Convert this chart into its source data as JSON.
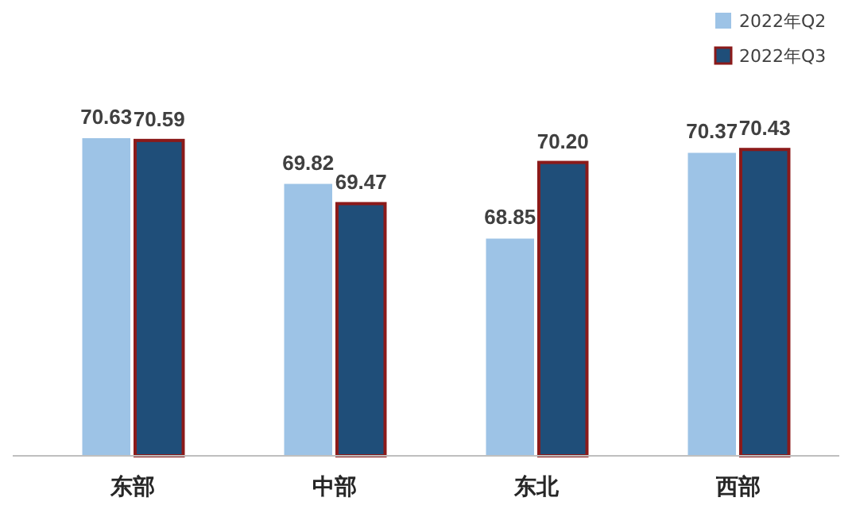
{
  "chart_data": {
    "type": "bar",
    "categories": [
      "东部",
      "中部",
      "东北",
      "西部"
    ],
    "series": [
      {
        "name": "2022年Q2",
        "color": "#9dc3e6",
        "values": [
          70.63,
          69.82,
          68.85,
          70.37
        ],
        "value_labels": [
          "70.63",
          "69.82",
          "68.85",
          "70.37"
        ]
      },
      {
        "name": "2022年Q3",
        "color": "#1f4e79",
        "values": [
          70.59,
          69.47,
          70.2,
          70.43
        ],
        "value_labels": [
          "70.59",
          "69.47",
          "70.20",
          "70.43"
        ]
      }
    ],
    "ylim": [
      65,
      70.63
    ],
    "legend": "top right",
    "tick_labels": "x"
  }
}
